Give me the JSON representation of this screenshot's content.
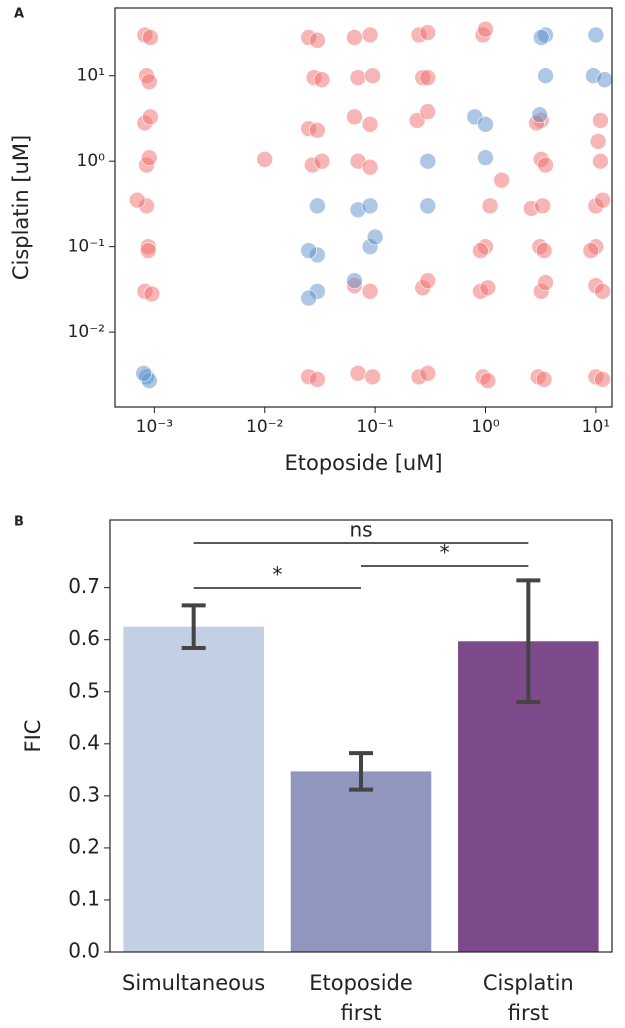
{
  "chart_data": [
    {
      "type": "scatter",
      "panel": "A",
      "x_label": "Etoposide [uM]",
      "y_label": "Cisplatin [uM]",
      "xscale": "log",
      "yscale": "log",
      "xlim": [
        0.00044,
        14
      ],
      "ylim": [
        0.00133,
        62
      ],
      "xticks": [
        {
          "value": 0.001,
          "label": "10⁻³"
        },
        {
          "value": 0.01,
          "label": "10⁻²"
        },
        {
          "value": 0.1,
          "label": "10⁻¹"
        },
        {
          "value": 1,
          "label": "10⁰"
        },
        {
          "value": 10,
          "label": "10¹"
        }
      ],
      "yticks": [
        {
          "value": 0.01,
          "label": "10⁻²"
        },
        {
          "value": 0.1,
          "label": "10⁻¹"
        },
        {
          "value": 1,
          "label": "10⁰"
        },
        {
          "value": 10,
          "label": "10¹"
        }
      ],
      "series": [
        {
          "color": "#f26b6b",
          "x": [
            0.00082,
            0.00092,
            0.00085,
            0.0009,
            0.00082,
            0.00092,
            0.00085,
            0.0009,
            0.00085,
            0.0007,
            0.00088,
            0.00088,
            0.00082,
            0.00095,
            0.025,
            0.03,
            0.028,
            0.033,
            0.025,
            0.03,
            0.027,
            0.033,
            0.025,
            0.03,
            0.01,
            0.065,
            0.09,
            0.07,
            0.095,
            0.065,
            0.09,
            0.07,
            0.09,
            0.09,
            0.065,
            0.07,
            0.095,
            0.25,
            0.3,
            0.27,
            0.3,
            0.24,
            0.3,
            0.27,
            0.3,
            0.25,
            0.3,
            0.95,
            1.0,
            1.0,
            0.9,
            0.9,
            1.05,
            0.95,
            1.05,
            1.1,
            1.4,
            3.2,
            2.9,
            3.2,
            3.5,
            2.6,
            3.3,
            3.1,
            3.4,
            3.2,
            3.5,
            3,
            3.4,
            11,
            10.5,
            11,
            10,
            11.5,
            10,
            9,
            10,
            11.5,
            10,
            11.5
          ],
          "y": [
            30,
            28,
            10,
            8.5,
            2.8,
            3.3,
            0.9,
            1.1,
            0.3,
            0.35,
            0.1,
            0.09,
            0.03,
            0.028,
            28,
            26,
            9.5,
            9,
            2.4,
            2.3,
            0.9,
            1,
            0.003,
            0.0028,
            1.05,
            28,
            30,
            9.5,
            10,
            3.3,
            2.7,
            1,
            0.85,
            0.03,
            0.035,
            0.0033,
            0.003,
            30,
            32,
            9.5,
            9.5,
            3,
            3.8,
            0.033,
            0.04,
            0.003,
            0.0033,
            30,
            35,
            0.1,
            0.09,
            0.03,
            0.033,
            0.003,
            0.0027,
            0.3,
            0.6,
            3,
            2.8,
            1.05,
            0.9,
            0.28,
            0.3,
            0.1,
            0.09,
            0.03,
            0.038,
            0.003,
            0.0028,
            3,
            1.7,
            1,
            0.3,
            0.35,
            0.1,
            0.09,
            0.035,
            0.03,
            0.003,
            0.0028
          ]
        },
        {
          "color": "#5b8fcc",
          "x": [
            0.00085,
            0.0009,
            0.0008,
            3.5,
            3.2,
            9.5,
            12,
            3.5,
            0.8,
            1,
            0.3,
            1,
            0.3,
            0.07,
            0.09,
            0.03,
            0.03,
            0.025,
            0.09,
            0.1,
            0.03,
            0.025,
            0.065,
            3.1,
            10
          ],
          "y": [
            0.003,
            0.0027,
            0.0033,
            30,
            28,
            10,
            9,
            10,
            3.3,
            2.7,
            1,
            1.1,
            0.3,
            0.27,
            0.3,
            0.3,
            0.08,
            0.09,
            0.1,
            0.13,
            0.03,
            0.025,
            0.04,
            3.5,
            30
          ]
        }
      ]
    },
    {
      "type": "bar",
      "panel": "B",
      "y_label": "FIC",
      "categories": [
        "Simultaneous",
        "Etoposide\nfirst",
        "Cisplatin\nfirst"
      ],
      "values": [
        0.625,
        0.347,
        0.597
      ],
      "errors": [
        0.041,
        0.035,
        0.117
      ],
      "colors": [
        "#c3cfe2",
        "#9196bf",
        "#7d4a8b"
      ],
      "ylim": [
        0,
        0.83
      ],
      "yticks": [
        {
          "value": 0,
          "label": "0.0"
        },
        0.1,
        0.2,
        0.3,
        0.4,
        0.5,
        0.6,
        0.7
      ],
      "annotations": [
        "ns",
        "*",
        "*"
      ]
    }
  ]
}
